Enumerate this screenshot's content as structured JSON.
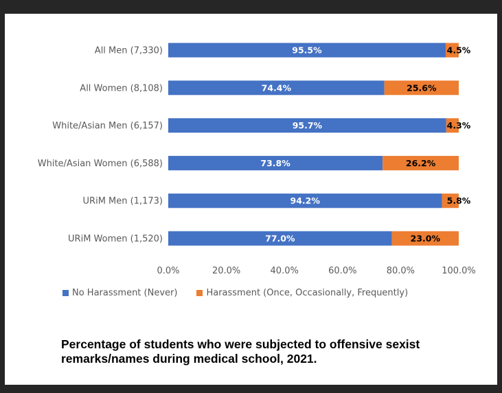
{
  "caption": "Percentage of students who were subjected to offensive sexist remarks/names during medical school, 2021.",
  "colors": {
    "series_1": "#4472c4",
    "series_2": "#ed7d31",
    "text": "#595959",
    "frame_bg": "#262626"
  },
  "chart_data": {
    "type": "bar",
    "orientation": "horizontal",
    "stacked": true,
    "title": "",
    "xlabel": "",
    "ylabel": "",
    "xlim": [
      0,
      100
    ],
    "x_ticks": [
      "0.0%",
      "20.0%",
      "40.0%",
      "60.0%",
      "80.0%",
      "100.0%"
    ],
    "grid": false,
    "legend_position": "bottom",
    "categories": [
      "All Men (7,330)",
      "All Women (8,108)",
      "White/Asian Men (6,157)",
      "White/Asian Women (6,588)",
      "URiM Men (1,173)",
      "URiM Women (1,520)"
    ],
    "series": [
      {
        "name": "No Harassment (Never)",
        "color": "#4472c4",
        "values": [
          95.5,
          74.4,
          95.7,
          73.8,
          94.2,
          77.0
        ],
        "labels": [
          "95.5%",
          "74.4%",
          "95.7%",
          "73.8%",
          "94.2%",
          "77.0%"
        ]
      },
      {
        "name": "Harassment (Once, Occasionally, Frequently)",
        "color": "#ed7d31",
        "values": [
          4.5,
          25.6,
          4.3,
          26.2,
          5.8,
          23.0
        ],
        "labels": [
          "4.5%",
          "25.6%",
          "4.3%",
          "26.2%",
          "5.8%",
          "23.0%"
        ]
      }
    ]
  }
}
